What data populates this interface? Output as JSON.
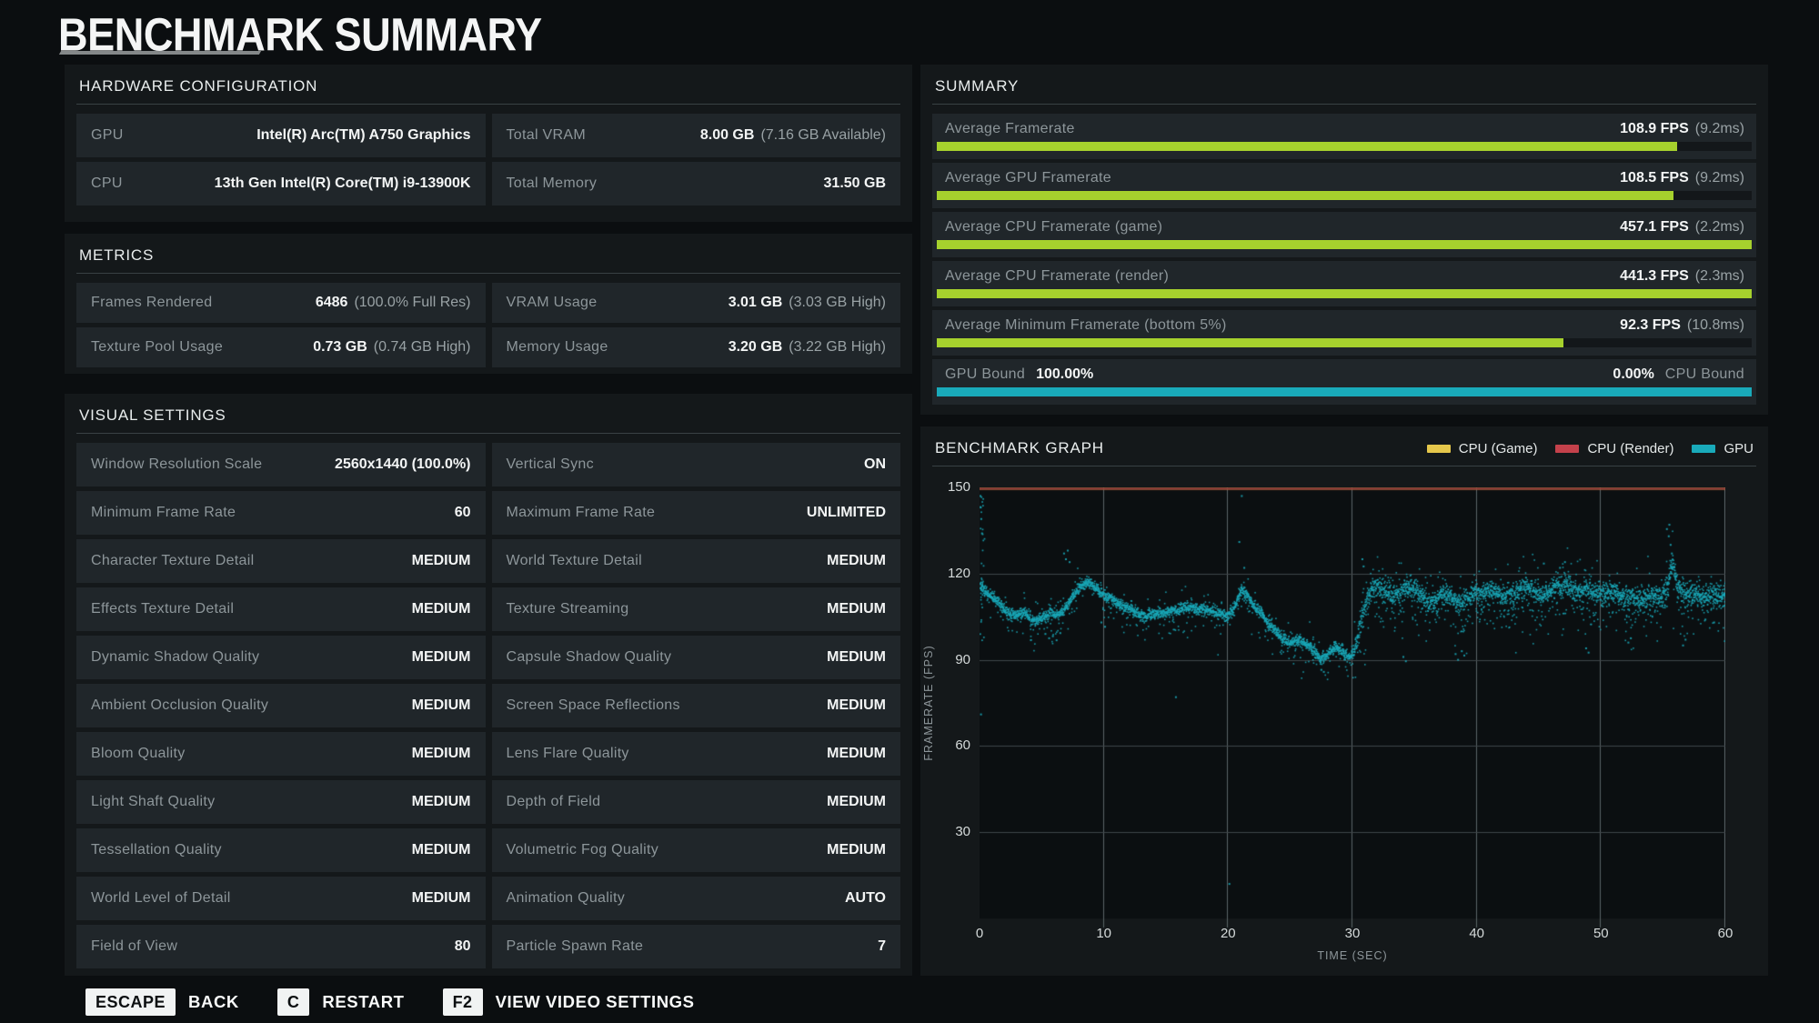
{
  "title": "BENCHMARK SUMMARY",
  "hardware": {
    "header": "HARDWARE CONFIGURATION",
    "cells": [
      {
        "label": "GPU",
        "value": "Intel(R) Arc(TM) A750 Graphics"
      },
      {
        "label": "Total VRAM",
        "value": "8.00 GB",
        "sub": "(7.16 GB Available)"
      },
      {
        "label": "CPU",
        "value": "13th Gen Intel(R) Core(TM) i9-13900K"
      },
      {
        "label": "Total Memory",
        "value": "31.50 GB"
      }
    ]
  },
  "metrics": {
    "header": "METRICS",
    "cells": [
      {
        "label": "Frames Rendered",
        "value": "6486",
        "sub": "(100.0% Full Res)"
      },
      {
        "label": "VRAM Usage",
        "value": "3.01 GB",
        "sub": "(3.03 GB High)"
      },
      {
        "label": "Texture Pool Usage",
        "value": "0.73 GB",
        "sub": "(0.74 GB High)"
      },
      {
        "label": "Memory Usage",
        "value": "3.20 GB",
        "sub": "(3.22 GB High)"
      }
    ]
  },
  "visual": {
    "header": "VISUAL SETTINGS",
    "cells": [
      {
        "label": "Window Resolution Scale",
        "value": "2560x1440 (100.0%)"
      },
      {
        "label": "Vertical Sync",
        "value": "ON"
      },
      {
        "label": "Minimum Frame Rate",
        "value": "60"
      },
      {
        "label": "Maximum Frame Rate",
        "value": "UNLIMITED"
      },
      {
        "label": "Character Texture Detail",
        "value": "MEDIUM"
      },
      {
        "label": "World Texture Detail",
        "value": "MEDIUM"
      },
      {
        "label": "Effects Texture Detail",
        "value": "MEDIUM"
      },
      {
        "label": "Texture Streaming",
        "value": "MEDIUM"
      },
      {
        "label": "Dynamic Shadow Quality",
        "value": "MEDIUM"
      },
      {
        "label": "Capsule Shadow Quality",
        "value": "MEDIUM"
      },
      {
        "label": "Ambient Occlusion Quality",
        "value": "MEDIUM"
      },
      {
        "label": "Screen Space Reflections",
        "value": "MEDIUM"
      },
      {
        "label": "Bloom Quality",
        "value": "MEDIUM"
      },
      {
        "label": "Lens Flare Quality",
        "value": "MEDIUM"
      },
      {
        "label": "Light Shaft Quality",
        "value": "MEDIUM"
      },
      {
        "label": "Depth of Field",
        "value": "MEDIUM"
      },
      {
        "label": "Tessellation Quality",
        "value": "MEDIUM"
      },
      {
        "label": "Volumetric Fog Quality",
        "value": "MEDIUM"
      },
      {
        "label": "World Level of Detail",
        "value": "MEDIUM"
      },
      {
        "label": "Animation Quality",
        "value": "AUTO"
      },
      {
        "label": "Field of View",
        "value": "80"
      },
      {
        "label": "Particle Spawn Rate",
        "value": "7"
      }
    ]
  },
  "summary": {
    "header": "SUMMARY",
    "accent_green": "#a6d12d",
    "accent_teal": "#19aaba",
    "rows": [
      {
        "label": "Average Framerate",
        "value": "108.9 FPS",
        "sub": "(9.2ms)",
        "fill": 90.8
      },
      {
        "label": "Average GPU Framerate",
        "value": "108.5 FPS",
        "sub": "(9.2ms)",
        "fill": 90.4
      },
      {
        "label": "Average CPU Framerate (game)",
        "value": "457.1 FPS",
        "sub": "(2.2ms)",
        "fill": 100
      },
      {
        "label": "Average CPU Framerate (render)",
        "value": "441.3 FPS",
        "sub": "(2.3ms)",
        "fill": 100
      },
      {
        "label": "Average Minimum Framerate (bottom 5%)",
        "value": "92.3 FPS",
        "sub": "(10.8ms)",
        "fill": 76.9
      }
    ],
    "bound": {
      "left_label": "GPU Bound",
      "left_value": "100.00%",
      "right_value": "0.00%",
      "right_label": "CPU Bound",
      "fill": 100
    }
  },
  "chart_data": {
    "type": "scatter",
    "title": "BENCHMARK GRAPH",
    "xlabel": "TIME (SEC)",
    "ylabel": "FRAMERATE (FPS)",
    "xlim": [
      0,
      60
    ],
    "ylim": [
      0,
      150
    ],
    "xticks": [
      0,
      10,
      20,
      30,
      40,
      50,
      60
    ],
    "yticks": [
      30,
      60,
      90,
      120,
      150
    ],
    "grid": true,
    "legend_position": "top-right",
    "plot_bg": "#0b0f11",
    "grid_h_color": "#3e4649",
    "grid_v_color": "#5a6467",
    "top_line_color": "#8b3038",
    "legend": [
      {
        "name": "CPU (Game)",
        "color": "#e5c74b"
      },
      {
        "name": "CPU (Render)",
        "color": "#c4414b"
      },
      {
        "name": "GPU",
        "color": "#19aaba"
      }
    ],
    "series": [
      {
        "name": "CPU (Game)",
        "style": "line",
        "color": "#e5c74b",
        "offscale_high": true,
        "avg_fps": 457.1
      },
      {
        "name": "CPU (Render)",
        "style": "line",
        "color": "#8b3038",
        "offscale_high": true,
        "avg_fps": 441.3
      },
      {
        "name": "GPU",
        "style": "scatter",
        "color": "#19aaba",
        "avg_fps": 108.5,
        "core_path": [
          [
            0,
            116
          ],
          [
            0.7,
            113
          ],
          [
            1.5,
            110
          ],
          [
            2.2,
            106.5
          ],
          [
            3,
            106
          ],
          [
            3.6,
            107
          ],
          [
            4.3,
            103.5
          ],
          [
            5,
            105
          ],
          [
            5.6,
            106.5
          ],
          [
            6.2,
            106
          ],
          [
            6.8,
            108
          ],
          [
            7.4,
            112
          ],
          [
            8,
            115.5
          ],
          [
            8.6,
            117.5
          ],
          [
            9.2,
            115.5
          ],
          [
            9.8,
            113.5
          ],
          [
            10.4,
            112
          ],
          [
            11,
            110
          ],
          [
            11.8,
            108.5
          ],
          [
            12.6,
            106.5
          ],
          [
            13.4,
            105.5
          ],
          [
            14.2,
            106.5
          ],
          [
            15,
            107
          ],
          [
            15.8,
            107.5
          ],
          [
            16.6,
            108.5
          ],
          [
            17.4,
            108
          ],
          [
            18.2,
            107.5
          ],
          [
            19,
            107
          ],
          [
            19.8,
            105.5
          ],
          [
            20.4,
            108
          ],
          [
            21,
            114.5
          ],
          [
            21.5,
            112.5
          ],
          [
            22,
            109
          ],
          [
            22.6,
            106.5
          ],
          [
            23.2,
            103
          ],
          [
            23.8,
            100
          ],
          [
            24.4,
            97.5
          ],
          [
            25,
            96
          ],
          [
            25.6,
            97.5
          ],
          [
            26.2,
            96
          ],
          [
            26.8,
            93.5
          ],
          [
            27.4,
            90.5
          ],
          [
            28,
            92.5
          ],
          [
            28.6,
            95
          ],
          [
            29.2,
            93
          ],
          [
            29.8,
            91
          ],
          [
            30.2,
            95
          ],
          [
            30.6,
            103
          ],
          [
            31,
            110
          ],
          [
            31.4,
            114
          ],
          [
            32,
            116
          ],
          [
            32.6,
            114
          ],
          [
            33.2,
            112
          ],
          [
            33.8,
            114
          ],
          [
            34.4,
            116
          ],
          [
            35,
            114.5
          ],
          [
            35.6,
            112
          ],
          [
            36.2,
            110
          ],
          [
            36.8,
            112
          ],
          [
            37.4,
            114
          ],
          [
            38,
            112
          ],
          [
            38.6,
            110
          ],
          [
            39.2,
            112
          ],
          [
            39.8,
            114
          ],
          [
            40.4,
            113
          ],
          [
            41,
            115
          ],
          [
            41.6,
            113.5
          ],
          [
            42.2,
            111.5
          ],
          [
            42.8,
            113
          ],
          [
            43.4,
            115
          ],
          [
            44,
            116
          ],
          [
            44.6,
            114
          ],
          [
            45.2,
            112.5
          ],
          [
            45.8,
            114
          ],
          [
            46.4,
            116
          ],
          [
            47,
            117
          ],
          [
            47.6,
            115
          ],
          [
            48.2,
            113.5
          ],
          [
            48.8,
            115
          ],
          [
            49.4,
            114
          ],
          [
            50,
            113
          ],
          [
            50.6,
            114.5
          ],
          [
            51.2,
            113
          ],
          [
            51.8,
            111.5
          ],
          [
            52.4,
            112.5
          ],
          [
            53,
            111
          ],
          [
            53.6,
            112
          ],
          [
            54.2,
            113
          ],
          [
            54.8,
            112
          ],
          [
            55.3,
            116
          ],
          [
            55.7,
            124
          ],
          [
            56,
            118
          ],
          [
            56.4,
            114
          ],
          [
            57,
            112.5
          ],
          [
            57.6,
            113.5
          ],
          [
            58.2,
            112
          ],
          [
            58.8,
            113
          ],
          [
            59.4,
            112.5
          ],
          [
            60,
            113
          ]
        ],
        "outliers": [
          [
            0.08,
            147
          ],
          [
            0.1,
            143
          ],
          [
            0.14,
            139
          ],
          [
            0.2,
            134
          ],
          [
            0.12,
            71
          ],
          [
            5.3,
            99
          ],
          [
            5.6,
            97.5
          ],
          [
            5.9,
            98.2
          ],
          [
            6.2,
            96.8
          ],
          [
            6.5,
            99.3
          ],
          [
            6.8,
            127
          ],
          [
            6.95,
            125
          ],
          [
            7.1,
            128
          ],
          [
            7.25,
            124
          ],
          [
            9.8,
            103
          ],
          [
            10.1,
            101.5
          ],
          [
            15.8,
            77
          ],
          [
            20.1,
            12
          ],
          [
            20.9,
            131
          ],
          [
            21.1,
            147
          ],
          [
            21.3,
            122
          ],
          [
            27.5,
            86.5
          ],
          [
            27.7,
            85.8
          ],
          [
            30.8,
            125
          ],
          [
            30.9,
            122.5
          ],
          [
            34.1,
            91
          ],
          [
            34.3,
            89.5
          ],
          [
            38.3,
            92
          ],
          [
            38.5,
            90
          ],
          [
            38.8,
            93
          ],
          [
            39,
            91.5
          ],
          [
            45.4,
            123.5
          ],
          [
            46.7,
            122
          ],
          [
            47.1,
            124
          ],
          [
            48.8,
            94
          ],
          [
            49,
            92.5
          ],
          [
            52.2,
            96
          ],
          [
            52.4,
            97.5
          ],
          [
            55.3,
            135.5
          ],
          [
            55.45,
            133
          ],
          [
            55.6,
            130
          ],
          [
            55.7,
            127
          ],
          [
            55.5,
            137
          ],
          [
            56.6,
            95
          ],
          [
            56.8,
            97
          ],
          [
            58.4,
            104
          ],
          [
            59.1,
            103
          ]
        ]
      }
    ]
  },
  "footer": {
    "actions": [
      {
        "key": "ESCAPE",
        "label": "BACK"
      },
      {
        "key": "C",
        "label": "RESTART"
      },
      {
        "key": "F2",
        "label": "VIEW VIDEO SETTINGS"
      }
    ]
  }
}
